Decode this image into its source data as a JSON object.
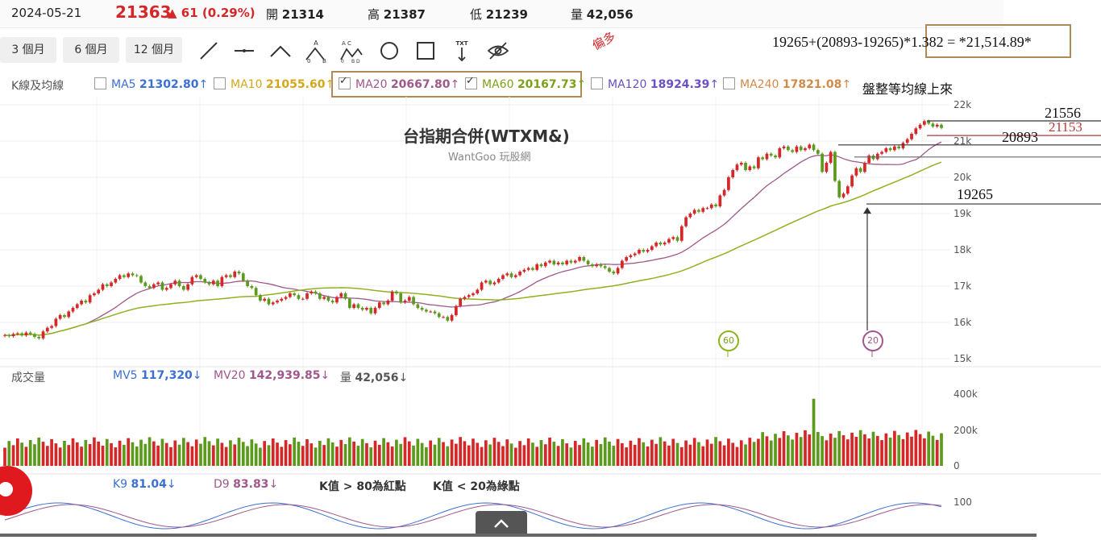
{
  "header": {
    "date": "2024-05-21",
    "price": "21363",
    "change": "61 (0.29%)",
    "open_label": "開",
    "open": "21314",
    "high_label": "高",
    "high": "21387",
    "low_label": "低",
    "low": "21239",
    "volume_label": "量",
    "volume": "42,056"
  },
  "toolbar": {
    "periods": [
      "3 個月",
      "6 個月",
      "12 個月"
    ],
    "tools": [
      "line-tool-icon",
      "horizontal-line-tool-icon",
      "angle-tool-icon",
      "abc-pattern-tool-icon",
      "abcd-pattern-tool-icon",
      "circle-tool-icon",
      "rectangle-tool-icon",
      "text-tool-icon",
      "hide-eye-icon"
    ]
  },
  "ma_legend": {
    "label": "K線及均線",
    "items": [
      {
        "name": "MA5",
        "value": "21302.80",
        "arrow": "↑",
        "checked": false,
        "color": "#3b6fd4"
      },
      {
        "name": "MA10",
        "value": "21055.60",
        "arrow": "↑",
        "checked": false,
        "color": "#e0b21e"
      },
      {
        "name": "MA20",
        "value": "20667.80",
        "arrow": "↑",
        "checked": true,
        "color": "#a0588a"
      },
      {
        "name": "MA60",
        "value": "20167.73",
        "arrow": "↑",
        "checked": true,
        "color": "#8fb21f"
      },
      {
        "name": "MA120",
        "value": "18924.39",
        "arrow": "↑",
        "checked": false,
        "color": "#6a4fc6"
      },
      {
        "name": "MA240",
        "value": "17821.08",
        "arrow": "↑",
        "checked": false,
        "color": "#d08a4a"
      }
    ],
    "note": "盤整等均線上來"
  },
  "watermark": {
    "title": "台指期合併(WTXM&)",
    "site": "WantGoo 玩股網"
  },
  "annotations": {
    "bias_long": "偏多",
    "formula": "19265+(20893-19265)*1.382 = *21,514.89*",
    "level_21556": "21556",
    "level_21153": "21153",
    "level_20893": "20893",
    "level_19265": "19265",
    "marker_60": "60",
    "marker_20": "20"
  },
  "volume_panel": {
    "label": "成交量",
    "mv5_label": "MV5",
    "mv5": "117,320",
    "mv5_arrow": "↓",
    "mv20_label": "MV20",
    "mv20": "142,939.85",
    "mv20_arrow": "↓",
    "vol_label": "量",
    "vol": "42,056",
    "vol_arrow": "↓"
  },
  "kd_panel": {
    "k_label": "K9",
    "k": "81.04",
    "k_arrow": "↓",
    "d_label": "D9",
    "d": "83.83",
    "d_arrow": "↓",
    "note_red": "K值 > 80為紅點",
    "note_green": "K值 < 20為綠點",
    "ytick": "100"
  },
  "chart_data": {
    "type": "candlestick",
    "title": "台指期合併(WTXM&)",
    "y_ticks": [
      "22k",
      "21k",
      "20k",
      "19k",
      "18k",
      "17k",
      "16k",
      "15k"
    ],
    "volume_ticks": [
      "400k",
      "200k",
      "0"
    ],
    "ylim": [
      14950,
      22250
    ],
    "closes": [
      15650,
      15620,
      15680,
      15700,
      15640,
      15720,
      15680,
      15600,
      15560,
      15750,
      15850,
      15900,
      16100,
      16200,
      16150,
      16300,
      16400,
      16500,
      16600,
      16550,
      16750,
      16800,
      16900,
      17050,
      17000,
      17100,
      17200,
      17300,
      17250,
      17350,
      17300,
      17280,
      17100,
      17000,
      16950,
      17050,
      17100,
      16900,
      16950,
      17050,
      17150,
      17000,
      16900,
      17050,
      17250,
      17300,
      17200,
      17100,
      17050,
      17150,
      17000,
      17250,
      17300,
      17250,
      17400,
      17350,
      17150,
      17000,
      16950,
      16750,
      16600,
      16650,
      16500,
      16550,
      16600,
      16650,
      16700,
      16800,
      16750,
      16650,
      16650,
      16800,
      16850,
      16800,
      16650,
      16700,
      16600,
      16550,
      16700,
      16800,
      16650,
      16400,
      16500,
      16400,
      16350,
      16400,
      16250,
      16400,
      16550,
      16500,
      16600,
      16850,
      16800,
      16550,
      16600,
      16700,
      16500,
      16400,
      16350,
      16300,
      16300,
      16250,
      16150,
      16150,
      16050,
      16200,
      16450,
      16650,
      16700,
      16750,
      16800,
      16900,
      17100,
      17150,
      17050,
      17100,
      17200,
      17300,
      17350,
      17250,
      17300,
      17400,
      17450,
      17500,
      17450,
      17600,
      17550,
      17650,
      17700,
      17600,
      17650,
      17600,
      17700,
      17650,
      17700,
      17800,
      17700,
      17600,
      17550,
      17600,
      17550,
      17500,
      17400,
      17350,
      17500,
      17700,
      17800,
      17850,
      17900,
      18000,
      17950,
      18000,
      18100,
      18200,
      18150,
      18200,
      18300,
      18350,
      18250,
      18650,
      18900,
      19000,
      19100,
      19050,
      19150,
      19150,
      19250,
      19200,
      19500,
      19650,
      20000,
      20200,
      20350,
      20400,
      20200,
      20300,
      20250,
      20550,
      20500,
      20650,
      20600,
      20550,
      20800,
      20850,
      20750,
      20700,
      20850,
      20750,
      20800,
      20900,
      20750,
      20650,
      20150,
      20400,
      20700,
      19900,
      19450,
      19550,
      19750,
      20050,
      20250,
      20150,
      20400,
      20600,
      20500,
      20650,
      20700,
      20800,
      20750,
      20850,
      20800,
      20950,
      21050,
      21200,
      21350,
      21450,
      21550,
      21480,
      21400,
      21450,
      21363
    ],
    "ma20_label": "MA20",
    "ma60_label": "MA60"
  }
}
